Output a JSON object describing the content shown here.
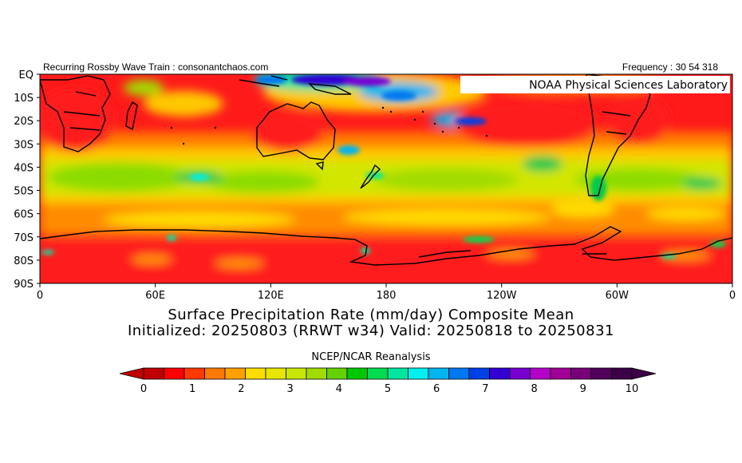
{
  "header": {
    "left_text": "Recurring Rossby Wave Train : consonantchaos.com",
    "right_text": "Frequency : 30 54 318"
  },
  "map": {
    "badge_text": "NOAA Physical Sciences Laboratory",
    "lat_labels": [
      "EQ",
      "10S",
      "20S",
      "30S",
      "40S",
      "50S",
      "60S",
      "70S",
      "80S",
      "90S"
    ],
    "lon_labels": [
      "0",
      "60E",
      "120E",
      "180",
      "120W",
      "60W",
      "0"
    ],
    "field": "Surface Precipitation Rate composite mean (mm/day)",
    "colors": {
      "ocean_dry": "#ff1a1a",
      "land_outline": "#000000",
      "badge_bg": "#ffffff"
    }
  },
  "title": {
    "line1": "Surface Precipitation Rate (mm/day) Composite Mean",
    "line2": "Initialized: 20250803 (RRWT w34) Valid: 20250818 to 20250831"
  },
  "dataset": "NCEP/NCAR Reanalysis",
  "colorbar": {
    "tick_labels": [
      "0",
      "1",
      "2",
      "3",
      "4",
      "5",
      "6",
      "7",
      "8",
      "9",
      "10"
    ],
    "colors": [
      "#c00000",
      "#ff0000",
      "#ff3a00",
      "#ff7800",
      "#ffa000",
      "#ffdc00",
      "#e6e600",
      "#c8e600",
      "#a0dc00",
      "#64d200",
      "#00c800",
      "#00dc50",
      "#00e6a0",
      "#00f0f0",
      "#00b4f0",
      "#0078f0",
      "#0040e6",
      "#3200d2",
      "#7800d2",
      "#b400c8",
      "#a00096",
      "#780078",
      "#50005a",
      "#3c0046"
    ]
  }
}
